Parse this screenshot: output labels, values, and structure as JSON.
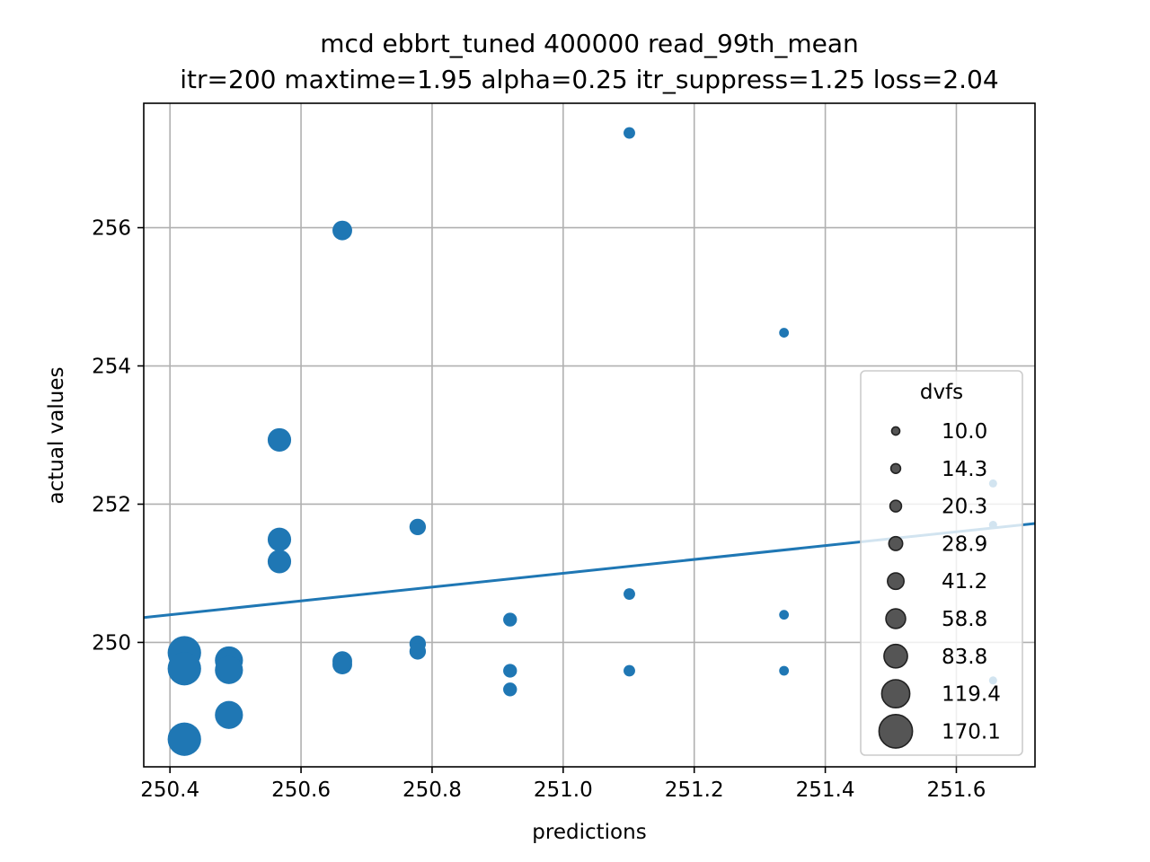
{
  "chart_data": {
    "type": "scatter",
    "title": "mcd ebbrt_tuned 400000 read_99th_mean",
    "subtitle": "itr=200 maxtime=1.95 alpha=0.25 itr_suppress=1.25 loss=2.04",
    "xlabel": "predictions",
    "ylabel": "actual values",
    "xlim": [
      250.36,
      251.72
    ],
    "ylim": [
      248.2,
      257.8
    ],
    "x_ticks": [
      250.4,
      250.6,
      250.8,
      251.0,
      251.2,
      251.4,
      251.6
    ],
    "x_tick_labels": [
      "250.4",
      "250.6",
      "250.8",
      "251.0",
      "251.2",
      "251.4",
      "251.6"
    ],
    "y_ticks": [
      250,
      252,
      254,
      256
    ],
    "y_tick_labels": [
      "250",
      "252",
      "254",
      "256"
    ],
    "grid": true,
    "point_color": "#1f77b4",
    "fit_line": {
      "color": "#1f77b4",
      "from": [
        250.36,
        250.36
      ],
      "to": [
        251.72,
        251.72
      ]
    },
    "points": [
      {
        "x": 250.422,
        "y": 249.85,
        "dvfs": 170.1
      },
      {
        "x": 250.422,
        "y": 249.62,
        "dvfs": 170.1
      },
      {
        "x": 250.422,
        "y": 248.6,
        "dvfs": 170.1
      },
      {
        "x": 250.49,
        "y": 249.74,
        "dvfs": 119.4
      },
      {
        "x": 250.49,
        "y": 249.6,
        "dvfs": 119.4
      },
      {
        "x": 250.49,
        "y": 248.95,
        "dvfs": 119.4
      },
      {
        "x": 250.567,
        "y": 252.93,
        "dvfs": 83.8
      },
      {
        "x": 250.567,
        "y": 251.49,
        "dvfs": 83.8
      },
      {
        "x": 250.567,
        "y": 251.17,
        "dvfs": 83.8
      },
      {
        "x": 250.663,
        "y": 255.96,
        "dvfs": 58.8
      },
      {
        "x": 250.663,
        "y": 249.73,
        "dvfs": 58.8
      },
      {
        "x": 250.663,
        "y": 249.68,
        "dvfs": 58.8
      },
      {
        "x": 250.778,
        "y": 251.67,
        "dvfs": 41.2
      },
      {
        "x": 250.778,
        "y": 249.98,
        "dvfs": 41.2
      },
      {
        "x": 250.778,
        "y": 249.87,
        "dvfs": 41.2
      },
      {
        "x": 250.919,
        "y": 250.33,
        "dvfs": 28.9
      },
      {
        "x": 250.919,
        "y": 249.59,
        "dvfs": 28.9
      },
      {
        "x": 250.919,
        "y": 249.32,
        "dvfs": 28.9
      },
      {
        "x": 251.101,
        "y": 257.37,
        "dvfs": 20.3
      },
      {
        "x": 251.101,
        "y": 250.7,
        "dvfs": 20.3
      },
      {
        "x": 251.101,
        "y": 249.59,
        "dvfs": 20.3
      },
      {
        "x": 251.337,
        "y": 254.48,
        "dvfs": 14.3
      },
      {
        "x": 251.337,
        "y": 250.4,
        "dvfs": 14.3
      },
      {
        "x": 251.337,
        "y": 249.59,
        "dvfs": 14.3
      },
      {
        "x": 251.656,
        "y": 252.3,
        "dvfs": 10.0
      },
      {
        "x": 251.656,
        "y": 251.7,
        "dvfs": 10.0
      },
      {
        "x": 251.656,
        "y": 249.45,
        "dvfs": 10.0
      }
    ],
    "legend": {
      "title": "dvfs",
      "placement": "lower-right",
      "marker_color": "#555555",
      "marker_edge": "#222222",
      "entries": [
        {
          "label": "10.0",
          "value": 10.0
        },
        {
          "label": "14.3",
          "value": 14.3
        },
        {
          "label": "20.3",
          "value": 20.3
        },
        {
          "label": "28.9",
          "value": 28.9
        },
        {
          "label": "41.2",
          "value": 41.2
        },
        {
          "label": "58.8",
          "value": 58.8
        },
        {
          "label": "83.8",
          "value": 83.8
        },
        {
          "label": "119.4",
          "value": 119.4
        },
        {
          "label": "170.1",
          "value": 170.1
        }
      ]
    }
  }
}
